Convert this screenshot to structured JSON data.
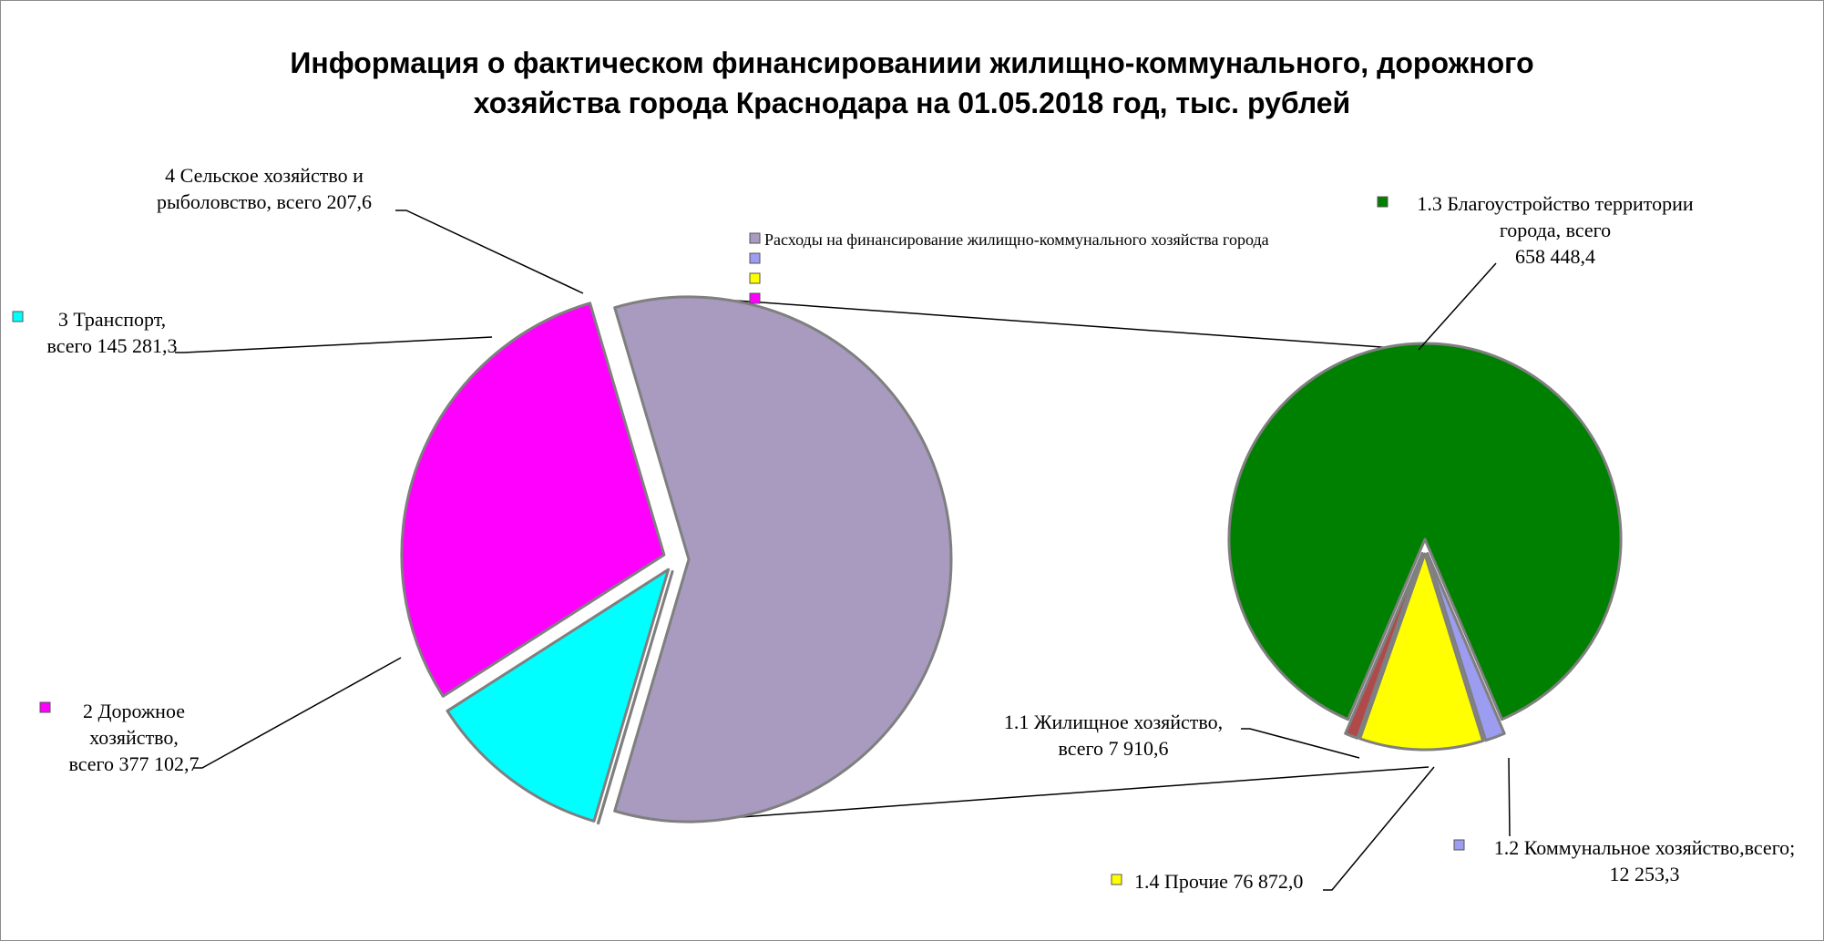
{
  "chart_data": {
    "type": "bar-of-pie",
    "title_lines": [
      "Информация о фактическом финансированиии жилищно-коммунального, дорожного",
      "хозяйства города Краснодара на 01.05.2018 год, тыс. рублей"
    ],
    "legend": [
      "Расходы на финансирование  жилищно-коммунального   хозяйства города",
      "",
      "",
      ""
    ],
    "legend_colors": [
      "#a89bbf",
      "#9c9cf0",
      "#ffff00",
      "#ff00ff"
    ],
    "main_pie": {
      "slices": [
        {
          "name": "Расходы на финансирование  жилищно-коммунального   хозяйства города",
          "value": 755484.3,
          "color": "#a89bbf",
          "label_lines": []
        },
        {
          "name": "4 Сельское хозяйство и рыболовство",
          "value": 207.6,
          "color": "#c8c8c8",
          "label_lines": [
            "4 Сельское хозяйство и",
            "рыболовство, всего 207,6"
          ]
        },
        {
          "name": "3 Транспорт",
          "value": 145281.3,
          "color": "#00ffff",
          "label_lines": [
            "3 Транспорт,",
            "всего 145 281,3"
          ]
        },
        {
          "name": "2 Дорожное хозяйство",
          "value": 377102.7,
          "color": "#ff00ff",
          "label_lines": [
            "2 Дорожное",
            "хозяйство,",
            "всего 377 102,7"
          ]
        }
      ]
    },
    "secondary_pie": {
      "slices": [
        {
          "name": "1.1 Жилищное хозяйство",
          "value": 7910.6,
          "color": "#b04a4a",
          "label_lines": [
            "1.1 Жилищное хозяйство,",
            "всего 7 910,6"
          ]
        },
        {
          "name": "1.3 Благоустройство территории города",
          "value": 658448.4,
          "color": "#008000",
          "label_lines": [
            "1.3 Благоустройство территории",
            "города, всего",
            "658 448,4"
          ]
        },
        {
          "name": "1.2 Коммунальное хозяйство",
          "value": 12253.3,
          "color": "#9c9cf0",
          "label_lines": [
            "1.2 Коммунальное хозяйство,всего;",
            "12 253,3"
          ]
        },
        {
          "name": "1.4 Прочие",
          "value": 76872.0,
          "color": "#ffff00",
          "label_lines": [
            "1.4 Прочие 76 872,0"
          ]
        }
      ]
    }
  }
}
